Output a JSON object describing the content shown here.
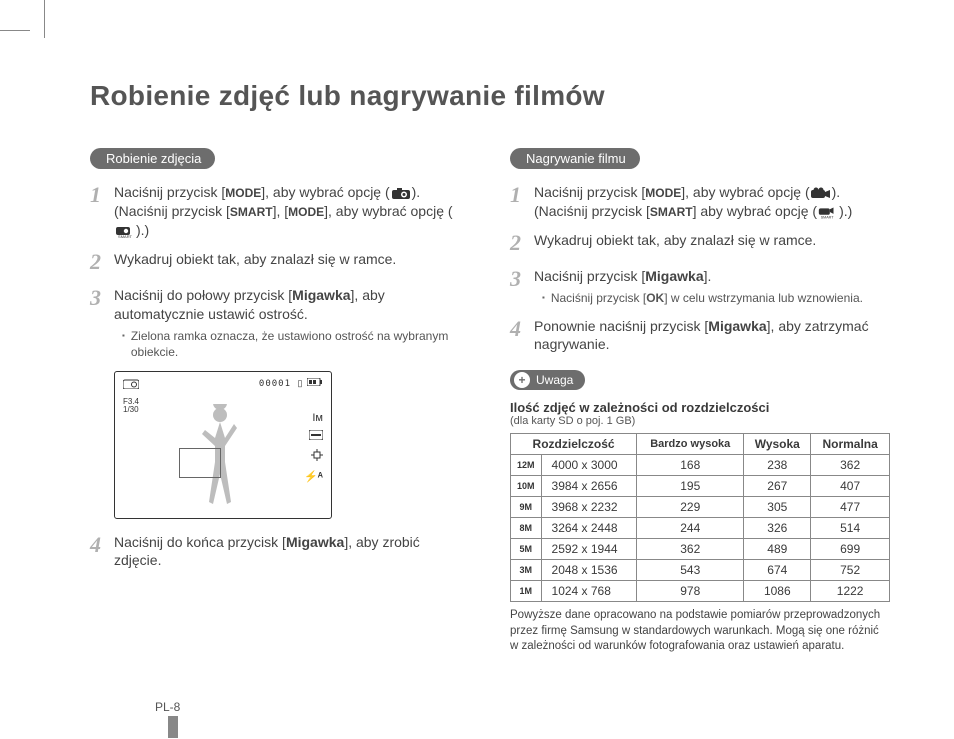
{
  "title": "Robienie zdjęć lub nagrywanie filmów",
  "page_num": "PL-8",
  "left": {
    "heading": "Robienie zdjęcia",
    "step1a": "Naciśnij przycisk [",
    "step1b": "], aby wybrać opcję (",
    "step1c": ").",
    "step1d": "(Naciśnij przycisk [",
    "step1e": "], [",
    "step1f": "], aby wybrać opcję (",
    "step1g": ").)",
    "step2": "Wykadruj obiekt tak, aby znalazł się w ramce.",
    "step3a": "Naciśnij do połowy przycisk [",
    "step3b": "], aby automatycznie ustawić ostrość.",
    "step3_sub": "Zielona ramka oznacza, że ustawiono ostrość na wybranym obiekcie.",
    "step4a": "Naciśnij do końca przycisk [",
    "step4b": "], aby zrobić zdjęcie.",
    "mode": "MODE",
    "smart": "SMART",
    "migawka": "Migawka",
    "lcd_counter": "00001",
    "lcd_f": "F3.4",
    "lcd_s": "1/30"
  },
  "right": {
    "heading": "Nagrywanie filmu",
    "step1a": "Naciśnij przycisk [",
    "step1b": "], aby wybrać opcję (",
    "step1c": ").",
    "step1d": "(Naciśnij przycisk [",
    "step1e": "] aby wybrać opcję (",
    "step1f": ").)",
    "step2": "Wykadruj obiekt tak, aby znalazł się w ramce.",
    "step3a": "Naciśnij przycisk [",
    "step3b": "].",
    "step3_sub_a": "Naciśnij przycisk [",
    "step3_sub_b": "] w celu wstrzymania lub wznowienia.",
    "step4a": "Ponownie naciśnij przycisk [",
    "step4b": "], aby zatrzymać nagrywanie.",
    "mode": "MODE",
    "smart": "SMART",
    "ok": "OK",
    "migawka": "Migawka",
    "uwaga": "Uwaga",
    "tbl_title": "Ilość zdjęć w zależności od rozdzielczości",
    "tbl_sub": "(dla karty SD o poj. 1 GB)",
    "note": "Powyższe dane opracowano na podstawie pomiarów przeprowadzonych przez firmę Samsung w standardowych warunkach. Mogą się one różnić w zależności od warunków fotografowania oraz ustawień aparatu."
  },
  "table": {
    "columns": [
      "Rozdzielczość",
      "Bardzo wysoka",
      "Wysoka",
      "Normalna"
    ],
    "rows": [
      {
        "icon": "12M",
        "res": "4000 x 3000",
        "c1": "168",
        "c2": "238",
        "c3": "362"
      },
      {
        "icon": "10M",
        "res": "3984 x 2656",
        "c1": "195",
        "c2": "267",
        "c3": "407"
      },
      {
        "icon": "9M",
        "res": "3968 x 2232",
        "c1": "229",
        "c2": "305",
        "c3": "477"
      },
      {
        "icon": "8M",
        "res": "3264 x 2448",
        "c1": "244",
        "c2": "326",
        "c3": "514"
      },
      {
        "icon": "5M",
        "res": "2592 x 1944",
        "c1": "362",
        "c2": "489",
        "c3": "699"
      },
      {
        "icon": "3M",
        "res": "2048 x 1536",
        "c1": "543",
        "c2": "674",
        "c3": "752"
      },
      {
        "icon": "1M",
        "res": "1024 x 768",
        "c1": "978",
        "c2": "1086",
        "c3": "1222"
      }
    ]
  }
}
